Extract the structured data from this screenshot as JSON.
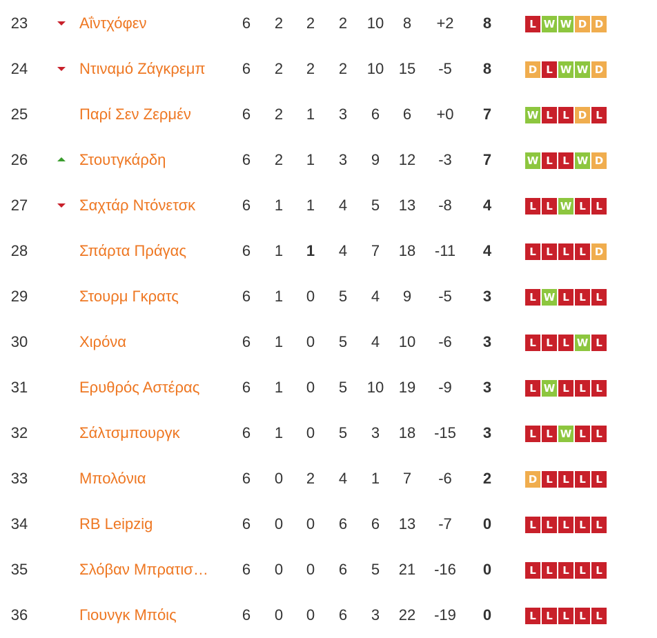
{
  "colors": {
    "team": "#ee7722",
    "W": "#8dc63f",
    "D": "#f0ad4e",
    "L": "#c8202a",
    "trend_up": "#3a9d2d",
    "trend_down": "#c8202a"
  },
  "rows": [
    {
      "pos": "23",
      "trend": "down",
      "team": "Αΐντχόφεν",
      "pld": "6",
      "w": "2",
      "d": "2",
      "l": "2",
      "gf": "10",
      "ga": "8",
      "gd": "+2",
      "pts": "8",
      "form": [
        "L",
        "W",
        "W",
        "D",
        "D"
      ]
    },
    {
      "pos": "24",
      "trend": "down",
      "team": "Ντιναμό Ζάγκρεμπ",
      "pld": "6",
      "w": "2",
      "d": "2",
      "l": "2",
      "gf": "10",
      "ga": "15",
      "gd": "-5",
      "pts": "8",
      "form": [
        "D",
        "L",
        "W",
        "W",
        "D"
      ]
    },
    {
      "pos": "25",
      "trend": "none",
      "team": "Παρί Σεν Ζερμέν",
      "pld": "6",
      "w": "2",
      "d": "1",
      "l": "3",
      "gf": "6",
      "ga": "6",
      "gd": "+0",
      "pts": "7",
      "form": [
        "W",
        "L",
        "L",
        "D",
        "L"
      ]
    },
    {
      "pos": "26",
      "trend": "up",
      "team": "Στουτγκάρδη",
      "pld": "6",
      "w": "2",
      "d": "1",
      "l": "3",
      "gf": "9",
      "ga": "12",
      "gd": "-3",
      "pts": "7",
      "form": [
        "W",
        "L",
        "L",
        "W",
        "D"
      ]
    },
    {
      "pos": "27",
      "trend": "down",
      "team": "Σαχτάρ Ντόνετσκ",
      "pld": "6",
      "w": "1",
      "d": "1",
      "l": "4",
      "gf": "5",
      "ga": "13",
      "gd": "-8",
      "pts": "4",
      "form": [
        "L",
        "L",
        "W",
        "L",
        "L"
      ]
    },
    {
      "pos": "28",
      "trend": "none",
      "team": "Σπάρτα Πράγας",
      "pld": "6",
      "w": "1",
      "d": "1",
      "d_bold": true,
      "l": "4",
      "gf": "7",
      "ga": "18",
      "gd": "-11",
      "pts": "4",
      "form": [
        "L",
        "L",
        "L",
        "L",
        "D"
      ]
    },
    {
      "pos": "29",
      "trend": "none",
      "team": "Στουρμ Γκρατς",
      "pld": "6",
      "w": "1",
      "d": "0",
      "l": "5",
      "gf": "4",
      "ga": "9",
      "gd": "-5",
      "pts": "3",
      "form": [
        "L",
        "W",
        "L",
        "L",
        "L"
      ]
    },
    {
      "pos": "30",
      "trend": "none",
      "team": "Χιρόνα",
      "pld": "6",
      "w": "1",
      "d": "0",
      "l": "5",
      "gf": "4",
      "ga": "10",
      "gd": "-6",
      "pts": "3",
      "form": [
        "L",
        "L",
        "L",
        "W",
        "L"
      ]
    },
    {
      "pos": "31",
      "trend": "none",
      "team": "Ερυθρός Αστέρας",
      "pld": "6",
      "w": "1",
      "d": "0",
      "l": "5",
      "gf": "10",
      "ga": "19",
      "gd": "-9",
      "pts": "3",
      "form": [
        "L",
        "W",
        "L",
        "L",
        "L"
      ]
    },
    {
      "pos": "32",
      "trend": "none",
      "team": "Σάλτσμπουργκ",
      "pld": "6",
      "w": "1",
      "d": "0",
      "l": "5",
      "gf": "3",
      "ga": "18",
      "gd": "-15",
      "pts": "3",
      "form": [
        "L",
        "L",
        "W",
        "L",
        "L"
      ]
    },
    {
      "pos": "33",
      "trend": "none",
      "team": "Μπολόνια",
      "pld": "6",
      "w": "0",
      "d": "2",
      "l": "4",
      "gf": "1",
      "ga": "7",
      "gd": "-6",
      "pts": "2",
      "form": [
        "D",
        "L",
        "L",
        "L",
        "L"
      ]
    },
    {
      "pos": "34",
      "trend": "none",
      "team": "RB Leipzig",
      "pld": "6",
      "w": "0",
      "d": "0",
      "l": "6",
      "gf": "6",
      "ga": "13",
      "gd": "-7",
      "pts": "0",
      "form": [
        "L",
        "L",
        "L",
        "L",
        "L"
      ]
    },
    {
      "pos": "35",
      "trend": "none",
      "team": "Σλόβαν Μπρατισ…",
      "pld": "6",
      "w": "0",
      "d": "0",
      "l": "6",
      "gf": "5",
      "ga": "21",
      "gd": "-16",
      "pts": "0",
      "form": [
        "L",
        "L",
        "L",
        "L",
        "L"
      ]
    },
    {
      "pos": "36",
      "trend": "none",
      "team": "Γιουνγκ Μπόις",
      "pld": "6",
      "w": "0",
      "d": "0",
      "l": "6",
      "gf": "3",
      "ga": "22",
      "gd": "-19",
      "pts": "0",
      "form": [
        "L",
        "L",
        "L",
        "L",
        "L"
      ]
    }
  ]
}
